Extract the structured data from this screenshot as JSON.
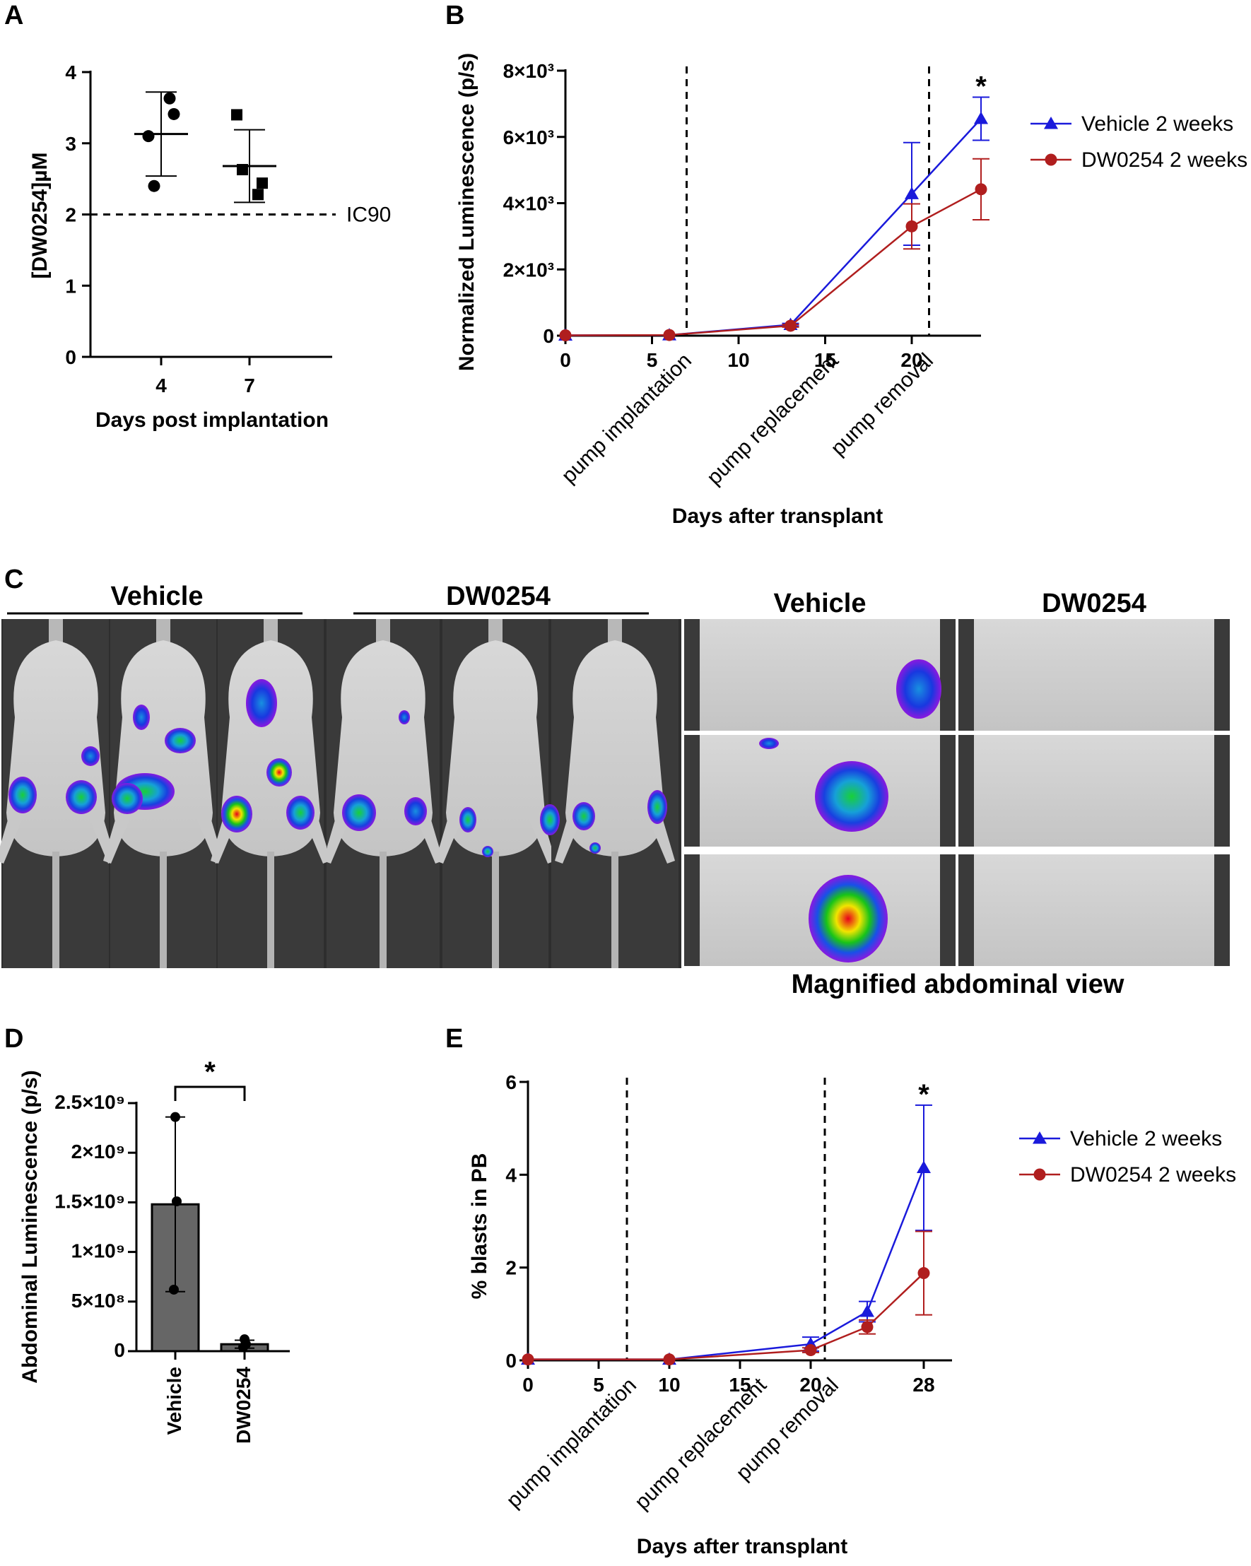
{
  "panels": {
    "A": {
      "letter": "A"
    },
    "B": {
      "letter": "B"
    },
    "C": {
      "letter": "C"
    },
    "D": {
      "letter": "D"
    },
    "E": {
      "letter": "E"
    }
  },
  "panel_c": {
    "group_left": "Vehicle",
    "group_right": "DW0254",
    "mag_left": "Vehicle",
    "mag_right": "DW0254",
    "caption": "Magnified abdominal view"
  },
  "colors": {
    "vehicle": "#1a1adb",
    "dw0254": "#b01e1e",
    "bar": "#666666"
  },
  "chart_data": [
    {
      "id": "A",
      "type": "scatter",
      "title": "",
      "xlabel": "Days post implantation",
      "ylabel": "[DW0254]µM",
      "categories": [
        "4",
        "7"
      ],
      "ylim": [
        0,
        4
      ],
      "yticks": [
        "0",
        "1",
        "2",
        "3",
        "4"
      ],
      "series": [
        {
          "name": "Day 4",
          "marker": "circle",
          "points": [
            3.1,
            2.4,
            3.63,
            3.41
          ]
        },
        {
          "name": "Day 7",
          "marker": "square",
          "points": [
            3.4,
            2.63,
            2.28,
            2.44
          ]
        }
      ],
      "means": [
        3.13,
        2.68
      ],
      "sd": [
        0.59,
        0.51
      ],
      "reference_line": {
        "value": 2,
        "label": "IC90"
      }
    },
    {
      "id": "B",
      "type": "line",
      "xlabel": "Days after transplant",
      "ylabel": "Normalized Luminescence (p/s)",
      "xlim": [
        0,
        24
      ],
      "ylim": [
        0,
        8000
      ],
      "xticks": [
        "0",
        "5",
        "10",
        "15",
        "20"
      ],
      "yticks": [
        "0",
        "2×10³",
        "4×10³",
        "6×10³",
        "8×10³"
      ],
      "vlines": [
        7,
        21
      ],
      "annotations": [
        "pump implantation",
        "pump replacement",
        "pump removal"
      ],
      "significance": "*",
      "series": [
        {
          "name": "Vehicle 2 weeks",
          "marker": "triangle",
          "x": [
            0,
            6,
            13,
            20,
            24
          ],
          "y": [
            10,
            20,
            330,
            4280,
            6550
          ],
          "err": [
            0,
            0,
            40,
            1550,
            650
          ]
        },
        {
          "name": "DW0254 2 weeks",
          "marker": "circle",
          "x": [
            0,
            6,
            13,
            20,
            24
          ],
          "y": [
            10,
            20,
            300,
            3300,
            4420
          ],
          "err": [
            0,
            0,
            40,
            680,
            920
          ]
        }
      ]
    },
    {
      "id": "D",
      "type": "bar",
      "xlabel": "",
      "ylabel": "Abdominal Luminescence (p/s)",
      "ylim": [
        0,
        2500000000
      ],
      "yticks": [
        "0",
        "5×10⁸",
        "1×10⁹",
        "1.5×10⁹",
        "2×10⁹",
        "2.5×10⁹"
      ],
      "categories": [
        "Vehicle",
        "DW0254"
      ],
      "values": [
        1480000000,
        70000000
      ],
      "err": [
        880000000,
        40000000
      ],
      "points": [
        [
          2360000000,
          1510000000,
          620000000
        ],
        [
          120000000,
          70000000,
          40000000
        ]
      ],
      "significance": "*"
    },
    {
      "id": "E",
      "type": "line",
      "xlabel": "Days after transplant",
      "ylabel": "% blasts in PB",
      "xlim": [
        0,
        30
      ],
      "ylim": [
        0,
        6
      ],
      "xticks": [
        "0",
        "5",
        "10",
        "15",
        "20",
        "28"
      ],
      "yticks": [
        "0",
        "2",
        "4",
        "6"
      ],
      "vlines": [
        7,
        21
      ],
      "annotations": [
        "pump implantation",
        "pump replacement",
        "pump removal"
      ],
      "significance": "*",
      "series": [
        {
          "name": "Vehicle 2 weeks",
          "marker": "triangle",
          "x": [
            0,
            10,
            20,
            24,
            28
          ],
          "y": [
            0.02,
            0.02,
            0.35,
            1.05,
            4.15
          ],
          "err": [
            0,
            0,
            0.15,
            0.22,
            1.35
          ]
        },
        {
          "name": "DW0254 2 weeks",
          "marker": "circle",
          "x": [
            0,
            10,
            20,
            24,
            28
          ],
          "y": [
            0.02,
            0.02,
            0.22,
            0.72,
            1.88
          ],
          "err": [
            0,
            0,
            0.05,
            0.15,
            0.9
          ]
        }
      ]
    }
  ]
}
